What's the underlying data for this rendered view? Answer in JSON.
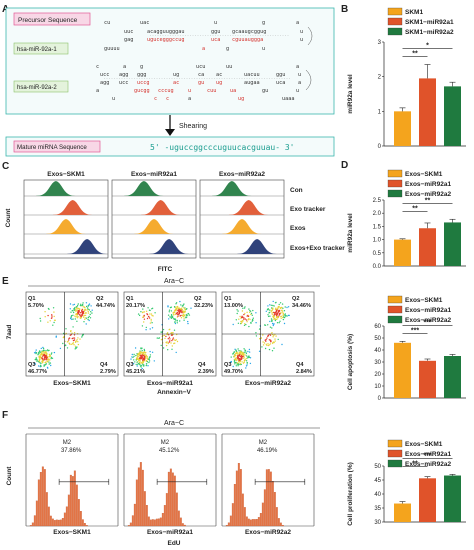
{
  "panels": {
    "A": "A",
    "B": "B",
    "C": "C",
    "D": "D",
    "E": "E",
    "F": "F"
  },
  "colors": {
    "orange": "#f4a41d",
    "red": "#e0532a",
    "green": "#1f7a3f",
    "navy": "#1e3370",
    "flow_orange": "#e8794a",
    "teal": "#28b0a0"
  },
  "panelA": {
    "precursor_title": "Precursor Sequence",
    "mir1_name": "hsa-miR-92a-1",
    "mir2_name": "hsa-miR-92a-2",
    "shearing": "Shearing",
    "mature_title": "Mature miRNA Sequence",
    "mature_seq": "5' -uguccggcccuguucacguuau- 3'",
    "h1": {
      "top1": "cu",
      "top2": "uac",
      "top3": "u",
      "top4": "g",
      "top5": "a",
      "r2a": "uuc",
      "r2b": "acagguugggau",
      "r2c": "ggu",
      "r2d": "gcaaugcggug",
      "r2e": "u",
      "r3a": "gag",
      "r3b": "ugucegggccug",
      "r3c": "uca",
      "r3d": "cguuauggga",
      "r3e": "u",
      "r4a": "guuuu",
      "r4b": "a",
      "r4c": "g",
      "r4d": "u"
    },
    "h2": {
      "r1a": "c",
      "r1b": "a",
      "r1c": "g",
      "r1d": "ucu",
      "r1e": "uu",
      "r1f": "a",
      "r2a": "ucc",
      "r2b": "agg",
      "r2c": "ggg",
      "r2d": "ug",
      "r2e": "ca",
      "r2f": "ac",
      "r2g": "uacuu",
      "r2h": "ggu",
      "r2i": "u",
      "r3a": "agg",
      "r3b": "ucc",
      "r3c": "uccg",
      "r3d": "ac",
      "r3e": "gu",
      "r3f": "ug",
      "r3g": "augaa",
      "r3h": "uca",
      "r3i": "a",
      "r4a": "a",
      "r4b": "gucgg",
      "r4c": "cccug",
      "r4d": "u",
      "r4e": "cuu",
      "r4f": "ua",
      "r4g": "gu",
      "r4h": "u",
      "r5a": "u",
      "r5b": "c",
      "r5c": "c",
      "r5d": "a",
      "r5e": "ug",
      "r5f": "uaaa"
    }
  },
  "panelB": {
    "legend": [
      "SKM1",
      "SKM1−miR92a1",
      "SKM1−miR92a2"
    ],
    "sig": [
      "**",
      "*"
    ]
  },
  "panelC": {
    "col_titles": [
      "Exos−SKM1",
      "Exos−miR92a1",
      "Exos−miR92a2"
    ],
    "row_labels": [
      "Con",
      "Exo tracker",
      "Exos",
      "Exos+Exo tracker"
    ],
    "ylabel": "Count",
    "xlabel": "FITC"
  },
  "panelD": {
    "legend": [
      "Exos−SKM1",
      "Exos−miR92a1",
      "Exos−miR92a2"
    ],
    "sig": [
      "**",
      "**"
    ]
  },
  "panelE": {
    "title": "Ara−C",
    "ylabel": "7aad",
    "xlabel": "Annexin−V",
    "plots": [
      {
        "name": "Exos−SKM1",
        "q1": "Q1",
        "q1v": "5.70%",
        "q2": "Q2",
        "q2v": "44.74%",
        "q3": "Q3",
        "q3v": "46.77%",
        "q4": "Q4",
        "q4v": "2.79%"
      },
      {
        "name": "Exos−miR92a1",
        "q1": "Q1",
        "q1v": "20.17%",
        "q2": "Q2",
        "q2v": "32.23%",
        "q3": "Q3",
        "q3v": "45.21%",
        "q4": "Q4",
        "q4v": "2.39%"
      },
      {
        "name": "Exos−miR92a2",
        "q1": "Q1",
        "q1v": "13.00%",
        "q2": "Q2",
        "q2v": "34.46%",
        "q3": "Q3",
        "q3v": "49.70%",
        "q4": "Q4",
        "q4v": "2.84%"
      }
    ],
    "legend": [
      "Exos−SKM1",
      "Exos−miR92a1",
      "Exos−miR92a2"
    ],
    "sig": [
      "***",
      "***"
    ]
  },
  "panelF": {
    "title": "Ara−C",
    "ylabel": "Count",
    "xlabel": "EdU",
    "plots": [
      {
        "name": "Exos−SKM1",
        "gate": "M2",
        "value": "37.86%"
      },
      {
        "name": "Exos−miR92a1",
        "gate": "M2",
        "value": "45.12%"
      },
      {
        "name": "Exos−miR92a2",
        "gate": "M2",
        "value": "46.19%"
      }
    ],
    "legend": [
      "Exos−SKM1",
      "Exos−miR92a1",
      "Exos−miR92a2"
    ],
    "sig": [
      "**",
      "***"
    ]
  },
  "chart_data": [
    {
      "type": "bar",
      "panel": "B",
      "categories": [
        "SKM1",
        "SKM1−miR92a1",
        "SKM1−miR92a2"
      ],
      "values": [
        1.0,
        1.95,
        1.72
      ],
      "errors": [
        0.1,
        0.4,
        0.12
      ],
      "ylabel": "miR92a level",
      "ylim": [
        0,
        3
      ],
      "yticks": [
        "0",
        "1",
        "2",
        "3"
      ]
    },
    {
      "type": "bar",
      "panel": "D",
      "categories": [
        "Exos−SKM1",
        "Exos−miR92a1",
        "Exos−miR92a2"
      ],
      "values": [
        1.0,
        1.43,
        1.65
      ],
      "errors": [
        0.03,
        0.2,
        0.12
      ],
      "ylabel": "miR92a level",
      "ylim": [
        0.0,
        2.5
      ],
      "yticks": [
        "0.0",
        "0.5",
        "1.0",
        "1.5",
        "2.0",
        "2.5"
      ]
    },
    {
      "type": "bar",
      "panel": "E",
      "categories": [
        "Exos−SKM1",
        "Exos−miR92a1",
        "Exos−miR92a2"
      ],
      "values": [
        46,
        31,
        35
      ],
      "errors": [
        1.2,
        1.5,
        1.3
      ],
      "ylabel": "Cell apoptosis (%)",
      "ylim": [
        0,
        60
      ],
      "yticks": [
        "0",
        "10",
        "20",
        "30",
        "40",
        "50",
        "60"
      ]
    },
    {
      "type": "bar",
      "panel": "F",
      "categories": [
        "Exos−SKM1",
        "Exos−miR92a1",
        "Exos−miR92a2"
      ],
      "values": [
        36.6,
        45.6,
        46.6
      ],
      "errors": [
        0.7,
        0.6,
        0.4
      ],
      "ylabel": "Cell proliferation (%)",
      "ylim": [
        30,
        50
      ],
      "yticks": [
        "30",
        "35",
        "40",
        "45",
        "50"
      ]
    }
  ]
}
